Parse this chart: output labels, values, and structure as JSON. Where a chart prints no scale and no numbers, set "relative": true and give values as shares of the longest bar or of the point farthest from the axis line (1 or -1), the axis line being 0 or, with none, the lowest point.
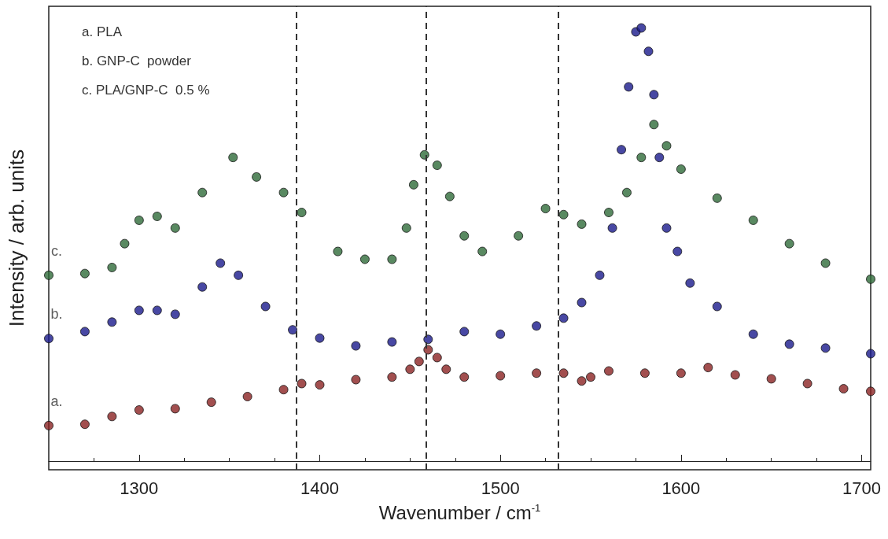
{
  "chart_data": {
    "type": "scatter",
    "xlabel": "Wavenumber / cm$^{-1}$",
    "ylabel": "Intensity / arb. units",
    "relative": true,
    "xlim": [
      1250,
      1705
    ],
    "xticks": [
      1300,
      1400,
      1500,
      1600,
      1700
    ],
    "marker": "circle",
    "legend": false,
    "grid": false,
    "annotations": [
      "a. PLA",
      "b. GNP-C  powder",
      "c. PLA/GNP-C  0.5 %"
    ],
    "ref_lines": [
      {
        "axis": "x",
        "value": 1387,
        "color": "#333333",
        "line_style": "dashed"
      },
      {
        "axis": "x",
        "value": 1459,
        "color": "#333333",
        "line_style": "dashed"
      },
      {
        "axis": "x",
        "value": 1532,
        "color": "#333333",
        "line_style": "dashed"
      }
    ],
    "series": [
      {
        "name": "a.",
        "color": "#8b2323",
        "x": [
          1250,
          1270,
          1285,
          1300,
          1320,
          1340,
          1360,
          1380,
          1390,
          1400,
          1420,
          1440,
          1450,
          1455,
          1460,
          1465,
          1470,
          1480,
          1500,
          1520,
          1535,
          1545,
          1550,
          1560,
          1580,
          1600,
          1615,
          1630,
          1650,
          1670,
          1690,
          1705
        ],
        "values": [
          0.082,
          0.085,
          0.103,
          0.118,
          0.121,
          0.136,
          0.149,
          0.165,
          0.179,
          0.176,
          0.188,
          0.194,
          0.212,
          0.23,
          0.257,
          0.239,
          0.212,
          0.194,
          0.197,
          0.203,
          0.203,
          0.185,
          0.194,
          0.208,
          0.203,
          0.203,
          0.216,
          0.199,
          0.19,
          0.179,
          0.167,
          0.161
        ]
      },
      {
        "name": "b.",
        "color": "#1a1a8c",
        "x": [
          1250,
          1270,
          1285,
          1300,
          1310,
          1320,
          1335,
          1345,
          1355,
          1370,
          1385,
          1400,
          1420,
          1440,
          1460,
          1480,
          1500,
          1520,
          1535,
          1545,
          1555,
          1562,
          1567,
          1571,
          1575,
          1578,
          1582,
          1585,
          1588,
          1592,
          1598,
          1605,
          1620,
          1640,
          1660,
          1680,
          1705
        ],
        "values": [
          0.283,
          0.299,
          0.321,
          0.348,
          0.348,
          0.339,
          0.402,
          0.457,
          0.429,
          0.357,
          0.303,
          0.284,
          0.266,
          0.275,
          0.281,
          0.299,
          0.293,
          0.312,
          0.33,
          0.366,
          0.429,
          0.538,
          0.719,
          0.864,
          0.991,
          1,
          0.946,
          0.846,
          0.701,
          0.538,
          0.484,
          0.411,
          0.357,
          0.293,
          0.27,
          0.261,
          0.248
        ]
      },
      {
        "name": "c.",
        "color": "#2f6b3a",
        "x": [
          1250,
          1270,
          1285,
          1292,
          1300,
          1310,
          1320,
          1335,
          1352,
          1365,
          1380,
          1390,
          1410,
          1425,
          1440,
          1448,
          1452,
          1458,
          1465,
          1472,
          1480,
          1490,
          1510,
          1525,
          1535,
          1545,
          1560,
          1570,
          1578,
          1585,
          1592,
          1600,
          1620,
          1640,
          1660,
          1680,
          1705
        ],
        "values": [
          0.429,
          0.433,
          0.447,
          0.502,
          0.556,
          0.565,
          0.538,
          0.62,
          0.701,
          0.656,
          0.62,
          0.574,
          0.484,
          0.466,
          0.466,
          0.538,
          0.638,
          0.707,
          0.683,
          0.611,
          0.52,
          0.484,
          0.52,
          0.583,
          0.569,
          0.547,
          0.574,
          0.62,
          0.701,
          0.777,
          0.728,
          0.674,
          0.607,
          0.556,
          0.502,
          0.457,
          0.42
        ]
      }
    ]
  }
}
